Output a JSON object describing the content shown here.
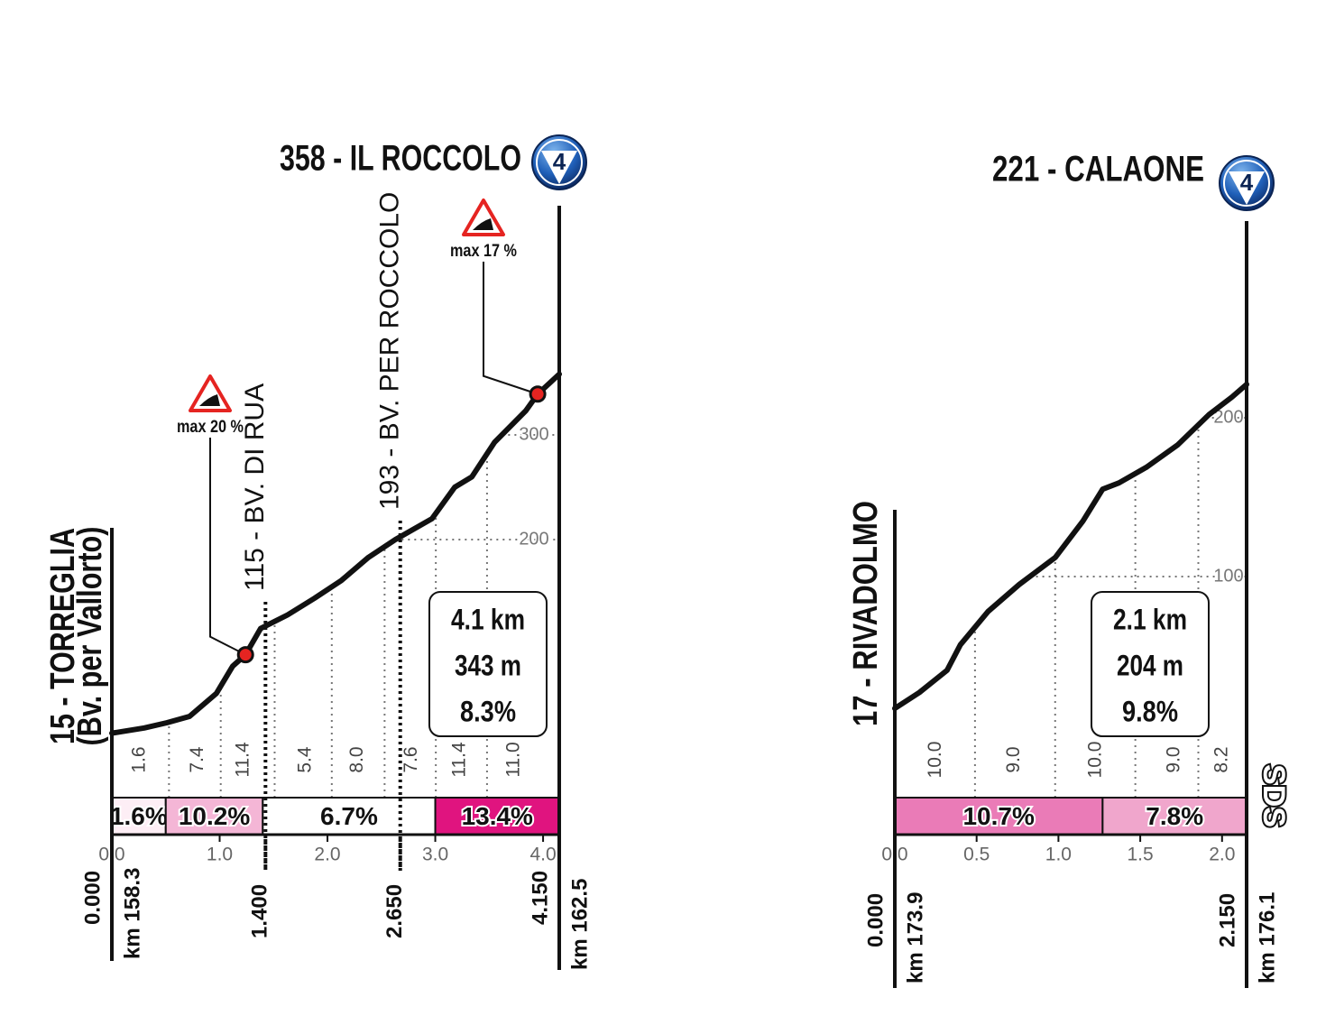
{
  "chart_data": [
    {
      "type": "area",
      "summit_label": "358 - IL ROCCOLO",
      "category": "4",
      "start_label": "15 - TORREGLIA",
      "start_sublabel": "(Bv. per Vallorto)",
      "x": [
        0,
        0.3,
        0.51,
        0.72,
        0.97,
        1.12,
        1.24,
        1.38,
        1.63,
        1.88,
        2.13,
        2.38,
        2.63,
        2.97,
        3.18,
        3.34,
        3.55,
        3.84,
        3.95,
        4.15
      ],
      "values": [
        15,
        20,
        25,
        31,
        53,
        79,
        90,
        115,
        128,
        144,
        161,
        183,
        200,
        220,
        250,
        260,
        293,
        323,
        339,
        358
      ],
      "xlim": [
        0,
        4.15
      ],
      "ylim": [
        0,
        400
      ],
      "xticks": [
        {
          "value": 0,
          "label": "0.0"
        },
        {
          "value": 1,
          "label": "1.0"
        },
        {
          "value": 2,
          "label": "2.0"
        },
        {
          "value": 3,
          "label": "3.0"
        },
        {
          "value": 4,
          "label": "4.0"
        }
      ],
      "yticks": [
        200,
        300
      ],
      "km_markers": [
        {
          "value": 0,
          "label": "0.000"
        },
        {
          "value": 1.4,
          "label": "1.400"
        },
        {
          "value": 2.65,
          "label": "2.650"
        },
        {
          "value": 4.15,
          "label": "4.150"
        }
      ],
      "start_km": "km 158.3",
      "end_km": "km 162.5",
      "waypoints": [
        {
          "x": 1.4,
          "label": "115 - BV. DI RUA"
        },
        {
          "x": 2.65,
          "label": "193 - BV. PER ROCCOLO"
        }
      ],
      "max_markers": [
        {
          "x": 1.24,
          "altitude": 90,
          "label": "max 20 %"
        },
        {
          "x": 3.95,
          "altitude": 339,
          "label": "max 17 %"
        }
      ],
      "stats": [
        "4.1 km",
        "343 m",
        "8.3%"
      ],
      "segments": {
        "bounds": [
          0,
          0.5,
          1.4,
          3.0,
          4.15
        ],
        "values": [
          1.6,
          10.2,
          6.7,
          13.4
        ],
        "value_labels": [
          "1.6%",
          "10.2%",
          "6.7%",
          "13.4%"
        ],
        "colors": [
          "#fdeef5",
          "#f4b6d6",
          "#ffffff",
          "#e0147f"
        ]
      },
      "half_km": {
        "x": [
          0.26,
          0.8,
          1.22,
          1.8,
          2.28,
          2.78,
          3.23,
          3.73
        ],
        "values": [
          1.6,
          7.4,
          11.4,
          5.4,
          8.0,
          7.6,
          11.4,
          11.0
        ],
        "value_labels": [
          "1.6",
          "7.4",
          "11.4",
          "5.4",
          "8.0",
          "7.6",
          "11.4",
          "11.0"
        ]
      }
    },
    {
      "type": "area",
      "summit_label": "221 - CALAONE",
      "category": "4",
      "start_label": "17 - RIVADOLMO",
      "x": [
        0,
        0.15,
        0.32,
        0.4,
        0.57,
        0.76,
        0.98,
        1.15,
        1.27,
        1.37,
        1.54,
        1.73,
        1.92,
        2.06,
        2.15
      ],
      "values": [
        17,
        27,
        41,
        57,
        78,
        95,
        112,
        135,
        155,
        159,
        169,
        183,
        202,
        213,
        221
      ],
      "xlim": [
        0,
        2.15
      ],
      "ylim": [
        0,
        250
      ],
      "xticks": [
        {
          "value": 0,
          "label": "0.0"
        },
        0.5,
        {
          "value": 1,
          "label": "1.0"
        },
        1.5,
        {
          "value": 2,
          "label": "2.0"
        }
      ],
      "yticks": [
        100,
        200
      ],
      "km_markers": [
        {
          "value": 0,
          "label": "0.000"
        },
        {
          "value": 2.15,
          "label": "2.150"
        }
      ],
      "start_km": "km 173.9",
      "end_km": "km 176.1",
      "stats": [
        "2.1 km",
        "204 m",
        "9.8%"
      ],
      "segments": {
        "bounds": [
          0,
          1.27,
          2.15
        ],
        "values": [
          10.7,
          7.8
        ],
        "value_labels": [
          "10.7%",
          "7.8%"
        ],
        "colors": [
          "#ea7bb7",
          "#f0a6cc"
        ]
      },
      "half_km": {
        "x": [
          0.25,
          0.73,
          1.23,
          1.71,
          2.0
        ],
        "values": [
          10.0,
          9.0,
          10.0,
          9.0,
          8.2
        ],
        "value_labels": [
          "10.0",
          "9.0",
          "10.0",
          "9.0",
          "8.2"
        ]
      },
      "logo": "SDS"
    }
  ]
}
